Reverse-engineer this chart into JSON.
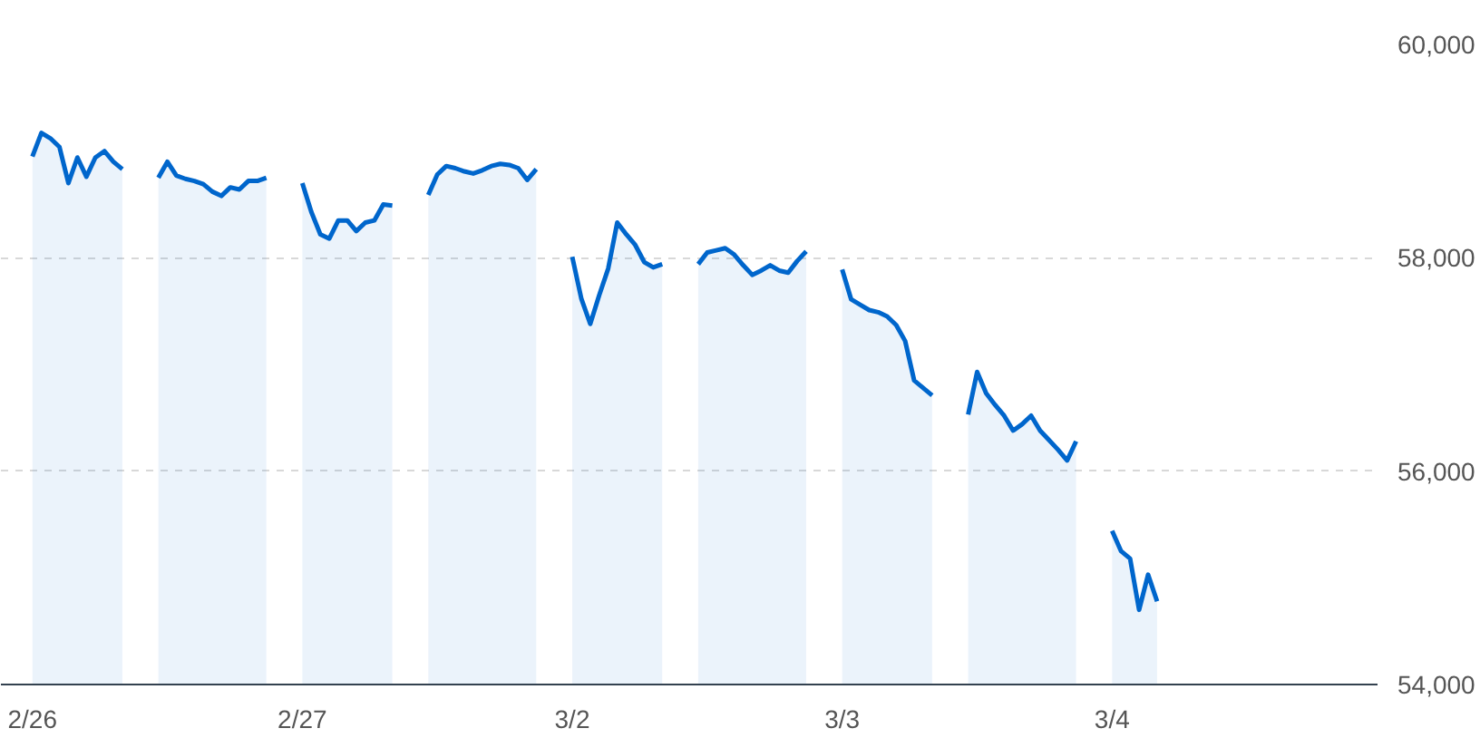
{
  "chart_data": {
    "type": "area",
    "ylim": [
      54000,
      60000
    ],
    "categories": [
      "2/26",
      null,
      null,
      null,
      null,
      null,
      null,
      null,
      null,
      null,
      null,
      null,
      null,
      null,
      null,
      null,
      null,
      null,
      null,
      null,
      null,
      null,
      null,
      null,
      null,
      null,
      null,
      null,
      null,
      null,
      "2/27",
      null,
      null,
      null,
      null,
      null,
      null,
      null,
      null,
      null,
      null,
      null,
      null,
      null,
      null,
      null,
      null,
      null,
      null,
      null,
      null,
      null,
      null,
      null,
      null,
      null,
      null,
      null,
      null,
      null,
      "3/2",
      null,
      null,
      null,
      null,
      null,
      null,
      null,
      null,
      null,
      null,
      null,
      null,
      null,
      null,
      null,
      null,
      null,
      null,
      null,
      null,
      null,
      null,
      null,
      null,
      null,
      null,
      null,
      null,
      null,
      "3/3",
      null,
      null,
      null,
      null,
      null,
      null,
      null,
      null,
      null,
      null,
      null,
      null,
      null,
      null,
      null,
      null,
      null,
      null,
      null,
      null,
      null,
      null,
      null,
      null,
      null,
      null,
      null,
      null,
      null,
      "3/4",
      null,
      null,
      null,
      null,
      null,
      null,
      null,
      null,
      null,
      null,
      null,
      null,
      null,
      null,
      null,
      null,
      null,
      null,
      null,
      null,
      null,
      null,
      null,
      null,
      null,
      null,
      null,
      null,
      null
    ],
    "yticks": [
      {
        "value": 54000,
        "label": "54,000"
      },
      {
        "value": 56000,
        "label": "56,000"
      },
      {
        "value": 58000,
        "label": "58,000"
      },
      {
        "value": 60000,
        "label": "60,000"
      }
    ],
    "grid": "y",
    "line_style": "solid",
    "series": [
      {
        "color": "#0066cc",
        "values": [
          58950,
          59170,
          59120,
          59040,
          58700,
          58940,
          58760,
          58940,
          59000,
          58900,
          58830,
          null,
          null,
          null,
          58750,
          58900,
          58770,
          58740,
          58720,
          58690,
          58620,
          58580,
          58660,
          58640,
          58720,
          58720,
          58750,
          null,
          null,
          null,
          58700,
          58430,
          58220,
          58180,
          58350,
          58350,
          58250,
          58330,
          58350,
          58500,
          58490,
          null,
          null,
          null,
          58590,
          58780,
          58860,
          58840,
          58810,
          58790,
          58820,
          58860,
          58880,
          58870,
          58840,
          58730,
          58830,
          null,
          null,
          null,
          58010,
          57620,
          57380,
          57650,
          57900,
          58330,
          58220,
          58120,
          57960,
          57910,
          57940,
          null,
          null,
          null,
          57940,
          58050,
          58070,
          58090,
          58030,
          57930,
          57840,
          57880,
          57930,
          57880,
          57860,
          57970,
          58060,
          null,
          null,
          null,
          57890,
          57610,
          57560,
          57510,
          57490,
          57450,
          57370,
          57220,
          56850,
          56780,
          56710,
          null,
          null,
          null,
          56530,
          56930,
          56730,
          56620,
          56520,
          56380,
          56440,
          56520,
          56380,
          56290,
          56200,
          56100,
          56280,
          null,
          null,
          null,
          55440,
          55250,
          55180,
          54700,
          55030,
          54780,
          null,
          null,
          null,
          null,
          null,
          null,
          null,
          null,
          null,
          null,
          null,
          null,
          null,
          null,
          null,
          null,
          null,
          null,
          null,
          null,
          null,
          null,
          null,
          null
        ]
      }
    ]
  }
}
